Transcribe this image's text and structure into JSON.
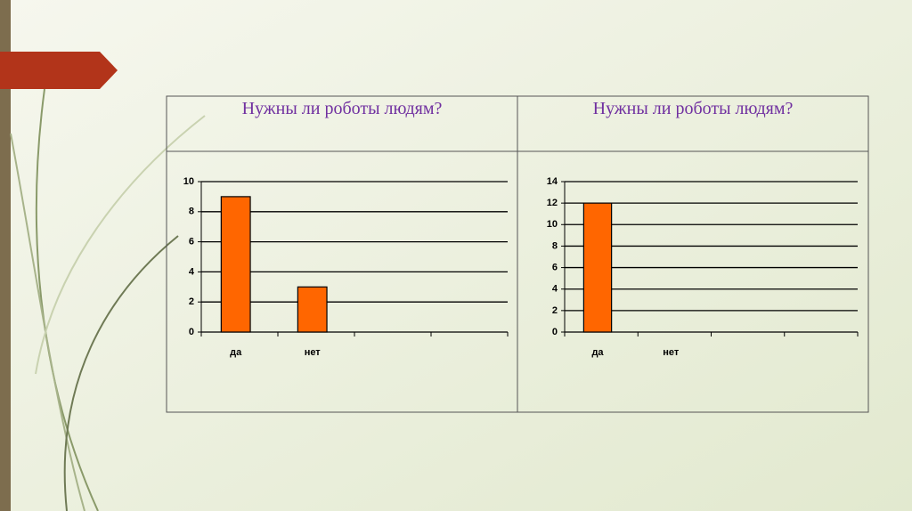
{
  "chart_data": [
    {
      "type": "bar",
      "title": "Нужны  ли  роботы  людям?",
      "categories": [
        "да",
        "нет",
        null,
        null
      ],
      "values": [
        9,
        3,
        null,
        null
      ],
      "color": "#ff6600",
      "ylim": [
        0,
        10
      ],
      "yticks": [
        0,
        2,
        4,
        6,
        8,
        10
      ],
      "grid": true
    },
    {
      "type": "bar",
      "title": "Нужны ли роботы людям?",
      "categories": [
        "да",
        "нет",
        null,
        null
      ],
      "values": [
        12,
        0,
        null,
        null
      ],
      "color": "#ff6600",
      "ylim": [
        0,
        14
      ],
      "yticks": [
        0,
        2,
        4,
        6,
        8,
        10,
        12,
        14
      ],
      "grid": true
    }
  ]
}
